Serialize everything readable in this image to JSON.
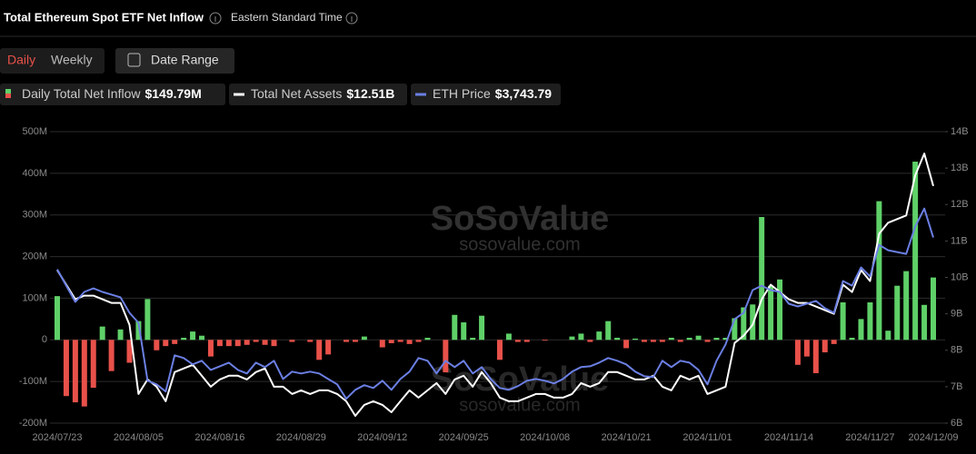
{
  "ui": {
    "title": "Total Ethereum Spot ETF Net Inflow",
    "timezone": "Eastern Standard Time",
    "tabs": [
      "Daily",
      "Weekly"
    ],
    "date_range": "Date Range",
    "watermark": "SoSoValue",
    "watermark_url": "sosovalue.com"
  },
  "chart_data": {
    "type": "bar",
    "categories": [
      "2024/07/23",
      null,
      null,
      null,
      null,
      null,
      null,
      null,
      null,
      "2024/08/05",
      null,
      null,
      null,
      null,
      null,
      null,
      null,
      null,
      "2024/08/16",
      null,
      null,
      null,
      null,
      null,
      null,
      null,
      null,
      "2024/08/29",
      null,
      null,
      null,
      null,
      null,
      null,
      null,
      null,
      "2024/09/12",
      null,
      null,
      null,
      null,
      null,
      null,
      null,
      null,
      "2024/09/25",
      null,
      null,
      null,
      null,
      null,
      null,
      null,
      null,
      "2024/10/08",
      null,
      null,
      null,
      null,
      null,
      null,
      null,
      null,
      "2024/10/21",
      null,
      null,
      null,
      null,
      null,
      null,
      null,
      null,
      "2024/11/01",
      null,
      null,
      null,
      null,
      null,
      null,
      null,
      null,
      "2024/11/14",
      null,
      null,
      null,
      null,
      null,
      null,
      null,
      null,
      "2024/11/27",
      null,
      null,
      null,
      null,
      null,
      null,
      "2024/12/09"
    ],
    "series": [
      {
        "name": "Daily Total Net Inflow",
        "current_label": "$149.79M",
        "type": "bar",
        "axis": "y",
        "color": "#5fd068",
        "negative_color": "#e8514a",
        "values": [
          105,
          -135,
          -150,
          -160,
          -115,
          32,
          -75,
          25,
          -55,
          45,
          98,
          -25,
          -15,
          -10,
          5,
          20,
          10,
          -40,
          -15,
          -15,
          -15,
          -12,
          -5,
          -12,
          -15,
          0,
          -5,
          0,
          -5,
          -48,
          -35,
          0,
          -5,
          -5,
          8,
          0,
          -18,
          -8,
          -5,
          -10,
          -5,
          5,
          0,
          -78,
          60,
          42,
          5,
          58,
          0,
          -48,
          15,
          -5,
          -5,
          0,
          -2,
          0,
          0,
          8,
          15,
          -5,
          20,
          45,
          5,
          -20,
          3,
          -5,
          -5,
          -5,
          5,
          -5,
          5,
          10,
          -5,
          5,
          5,
          52,
          78,
          85,
          295,
          130,
          145,
          0,
          -60,
          -40,
          -80,
          -30,
          -10,
          90,
          5,
          50,
          90,
          333,
          22,
          130,
          165,
          428,
          84,
          149.79
        ]
      },
      {
        "name": "Total Net Assets",
        "current_label": "$12.51B",
        "type": "line",
        "axis": "y2",
        "color": "#ffffff",
        "values": [
          10.2,
          9.8,
          9.4,
          9.5,
          9.5,
          9.4,
          9.3,
          9.3,
          8.7,
          6.8,
          7.2,
          7.0,
          6.6,
          7.4,
          7.5,
          7.6,
          7.3,
          7.0,
          7.2,
          7.3,
          7.3,
          7.2,
          7.4,
          7.5,
          7.0,
          7.0,
          6.8,
          6.9,
          6.8,
          6.9,
          6.9,
          6.8,
          6.6,
          6.2,
          6.5,
          6.6,
          6.5,
          6.3,
          6.6,
          6.9,
          6.7,
          6.9,
          7.1,
          6.8,
          7.2,
          7.3,
          7.0,
          7.4,
          7.1,
          6.7,
          6.6,
          6.6,
          6.7,
          6.8,
          6.8,
          6.7,
          6.7,
          6.8,
          7.1,
          7.0,
          7.1,
          7.4,
          7.4,
          7.3,
          7.2,
          7.2,
          7.3,
          7.0,
          6.9,
          7.3,
          7.2,
          7.3,
          6.8,
          6.9,
          7.0,
          8.2,
          8.4,
          8.7,
          9.4,
          9.8,
          9.6,
          9.4,
          9.3,
          9.3,
          9.2,
          9.1,
          9.0,
          9.8,
          9.6,
          10.2,
          9.9,
          11.2,
          11.5,
          11.6,
          11.7,
          12.8,
          13.4,
          12.51
        ]
      },
      {
        "name": "ETH Price",
        "current_label": "$3,743.79",
        "type": "line",
        "axis": "y3",
        "color": "#6b7fe3",
        "values": [
          3454,
          3305,
          3156,
          3247,
          3280,
          3247,
          3223,
          3198,
          3057,
          2966,
          2437,
          2404,
          2338,
          2669,
          2644,
          2586,
          2619,
          2536,
          2569,
          2602,
          2536,
          2503,
          2602,
          2561,
          2619,
          2453,
          2520,
          2503,
          2520,
          2503,
          2453,
          2404,
          2272,
          2354,
          2396,
          2371,
          2437,
          2354,
          2453,
          2520,
          2644,
          2619,
          2503,
          2619,
          2561,
          2619,
          2503,
          2561,
          2453,
          2371,
          2354,
          2387,
          2437,
          2453,
          2437,
          2412,
          2453,
          2520,
          2561,
          2569,
          2602,
          2644,
          2619,
          2586,
          2520,
          2478,
          2470,
          2619,
          2561,
          2619,
          2602,
          2536,
          2404,
          2619,
          2768,
          3000,
          3057,
          3264,
          3305,
          3264,
          3247,
          3140,
          3115,
          3140,
          3165,
          3099,
          3057,
          3347,
          3305,
          3471,
          3388,
          3677,
          3628,
          3611,
          3595,
          3843,
          4008,
          3743.79
        ]
      }
    ],
    "ylim": [
      -200,
      500
    ],
    "yticks": [
      {
        "value": -200,
        "label": "-200M"
      },
      {
        "value": -100,
        "label": "-100M"
      },
      0,
      {
        "value": 100,
        "label": "100M"
      },
      {
        "value": 200,
        "label": "200M"
      },
      {
        "value": 300,
        "label": "300M"
      },
      {
        "value": 400,
        "label": "400M"
      },
      {
        "value": 500,
        "label": "500M"
      }
    ],
    "y2lim": [
      6,
      14
    ],
    "y2ticks": [
      {
        "value": 6,
        "label": "6B"
      },
      {
        "value": 7,
        "label": "7B"
      },
      {
        "value": 8,
        "label": "8B"
      },
      {
        "value": 9,
        "label": "9B"
      },
      {
        "value": 10,
        "label": "10B"
      },
      {
        "value": 11,
        "label": "11B"
      },
      {
        "value": 12,
        "label": "12B"
      },
      {
        "value": 13,
        "label": "13B"
      },
      {
        "value": 14,
        "label": "14B"
      }
    ],
    "y3lim": [
      2050,
      4710
    ],
    "grid": true
  }
}
